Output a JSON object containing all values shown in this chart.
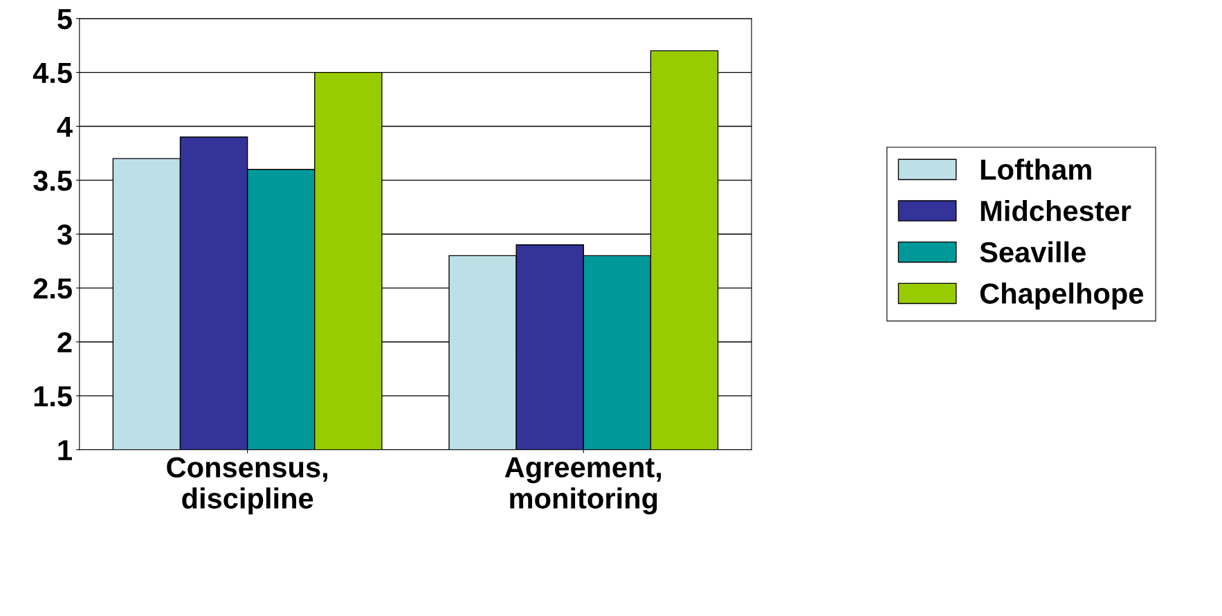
{
  "chart_data": {
    "type": "bar",
    "categories": [
      "Consensus,\ndiscipline",
      "Agreement,\nmonitoring"
    ],
    "series": [
      {
        "name": "Loftham",
        "color": "#bde0e6",
        "values": [
          3.7,
          2.8
        ]
      },
      {
        "name": "Midchester",
        "color": "#333399",
        "values": [
          3.9,
          2.9
        ]
      },
      {
        "name": "Seaville",
        "color": "#009999",
        "values": [
          3.6,
          2.8
        ]
      },
      {
        "name": "Chapelhope",
        "color": "#99cc00",
        "values": [
          4.5,
          4.7
        ]
      }
    ],
    "ylim": [
      1,
      5
    ],
    "yticks": [
      1,
      1.5,
      2,
      2.5,
      3,
      3.5,
      4,
      4.5,
      5
    ],
    "grid": "y",
    "legend": "right"
  }
}
